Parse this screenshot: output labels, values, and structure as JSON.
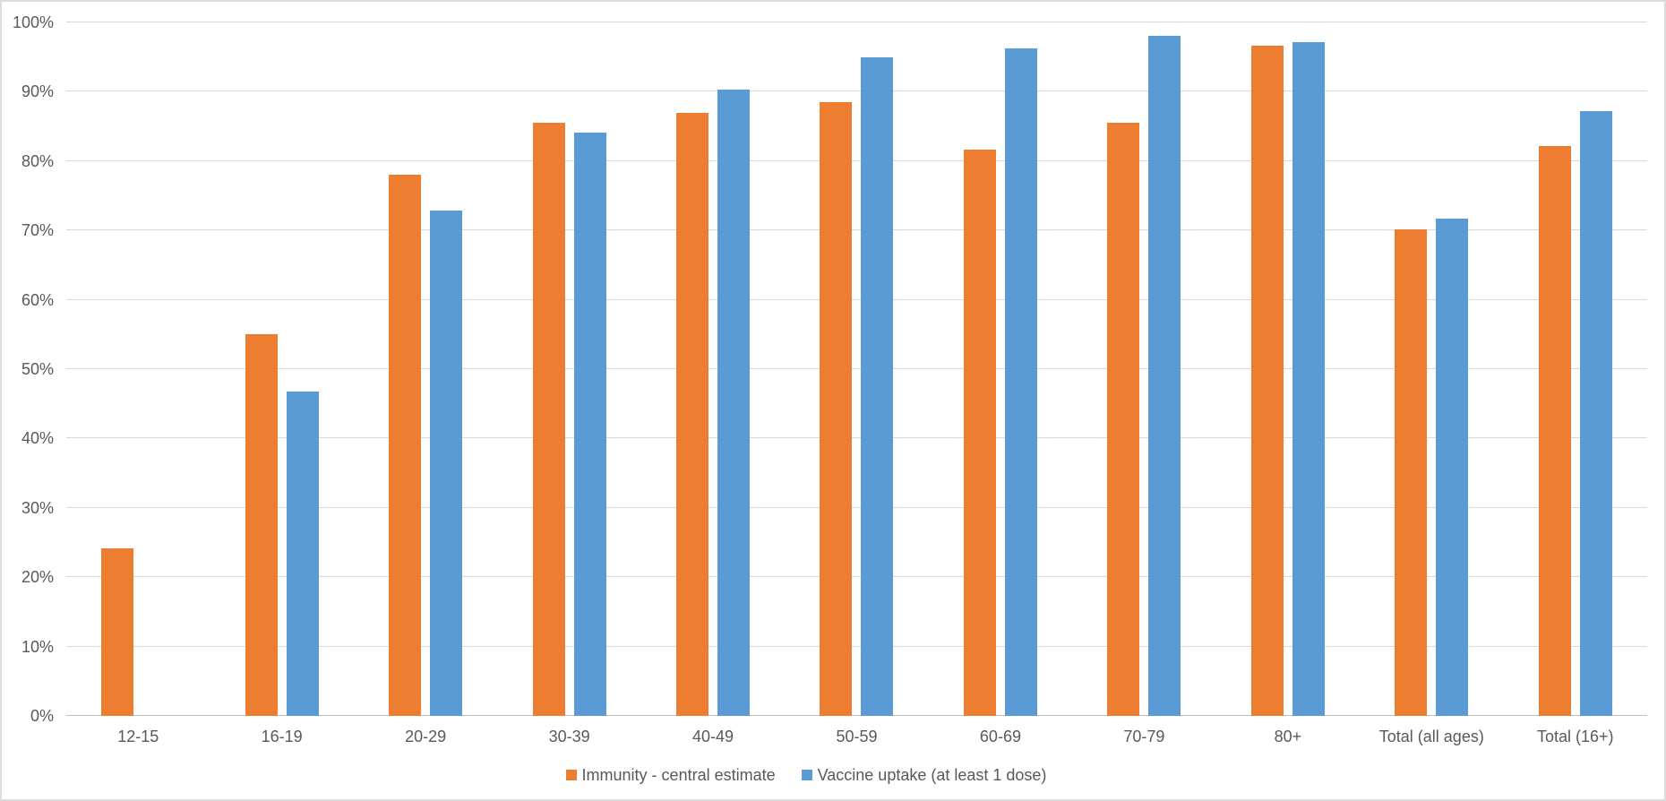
{
  "chart_data": {
    "type": "bar",
    "title": "",
    "xlabel": "",
    "ylabel": "",
    "grid": true,
    "legend_position": "bottom",
    "ylim": [
      0,
      100
    ],
    "y_tick_step": 10,
    "y_tick_labels": [
      "0%",
      "10%",
      "20%",
      "30%",
      "40%",
      "50%",
      "60%",
      "70%",
      "80%",
      "90%",
      "100%"
    ],
    "categories": [
      "12-15",
      "16-19",
      "20-29",
      "30-39",
      "40-49",
      "50-59",
      "60-69",
      "70-79",
      "80+",
      "Total (all ages)",
      "Total (16+)"
    ],
    "series": [
      {
        "name": "Immunity - central estimate",
        "color": "#ED7D31",
        "values": [
          24.2,
          55.0,
          78.1,
          85.5,
          87.0,
          88.5,
          81.6,
          85.5,
          96.7,
          70.1,
          82.2
        ]
      },
      {
        "name": "Vaccine uptake (at least 1 dose)",
        "color": "#5B9BD5",
        "values": [
          null,
          46.8,
          72.9,
          84.1,
          90.3,
          94.9,
          96.2,
          98.0,
          97.2,
          71.7,
          87.2
        ]
      }
    ]
  },
  "styles": {
    "gridline_color": "#D9D9D9",
    "axis_line_color": "#C0C0C0",
    "axis_text_color": "#595959",
    "background_color": "#FFFFFF",
    "frame_border_color": "#DCDCDC"
  }
}
